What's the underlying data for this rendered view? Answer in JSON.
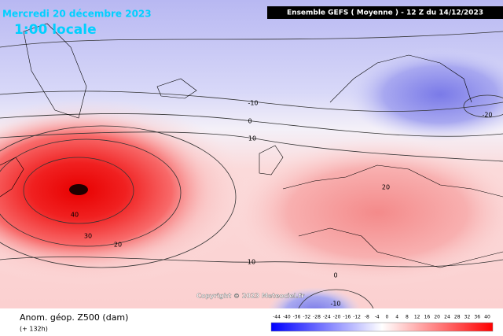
{
  "header": {
    "date": "Mercredi 20 décembre 2023",
    "time": "1:00 locale",
    "model": "Ensemble GEFS  ( Moyenne )  -  12 Z du 14/12/2023"
  },
  "map": {
    "contour_labels": [
      "-10",
      "0",
      "10",
      "20",
      "40",
      "30",
      "20",
      "10",
      "0",
      "-10",
      "-20"
    ],
    "copyright": "Copyright © 2023 Meteociel.fr"
  },
  "legend": {
    "title": "Anom. géop. Z500 (dam)",
    "subtitle": "(+ 132h)"
  },
  "colorbar": {
    "ticks": [
      -44,
      -40,
      -36,
      -32,
      -28,
      -24,
      -20,
      -16,
      -12,
      -8,
      -4,
      0,
      4,
      8,
      12,
      16,
      20,
      24,
      28,
      32,
      36,
      40
    ]
  }
}
